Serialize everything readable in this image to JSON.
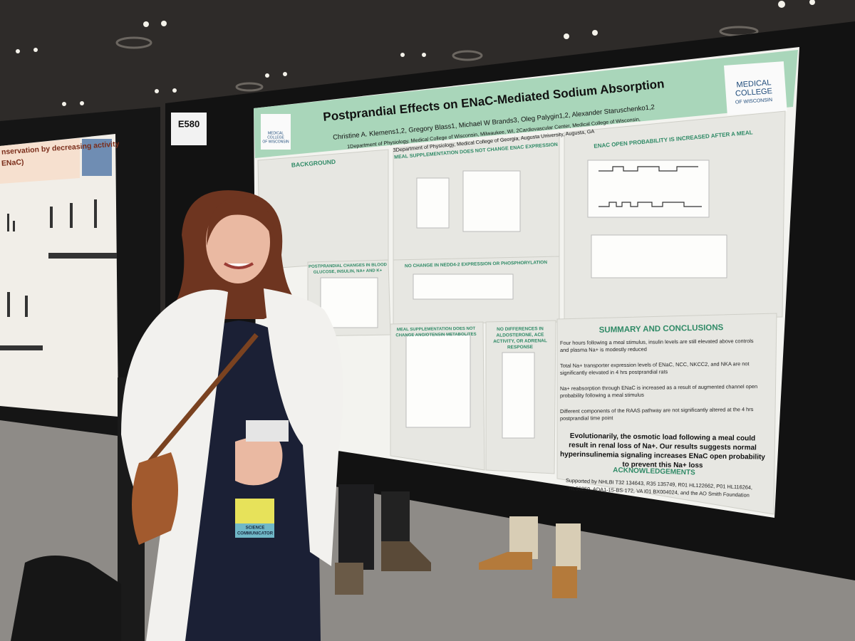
{
  "booth": "E580",
  "poster": {
    "title": "Postprandial Effects on ENaC-Mediated Sodium Absorption",
    "authors": "Christine A. Klemens1,2, Gregory Blass1, Michael W Brands3, Oleg Palygin1,2, Alexander Staruschenko1,2",
    "affiliations": [
      "1Department of Physiology, Medical College of Wisconsin, Milwaukee, WI, 2Cardiovascular Center, Medical College of Wisconsin,",
      "3Department of Physiology, Medical College of Georgia, Augusta University, Augusta, GA"
    ],
    "logo": [
      "MEDICAL",
      "COLLEGE",
      "OF WISCONSIN"
    ],
    "sections": [
      [
        "BACKGROUND"
      ],
      [
        "MEAL SUPPLEMENTATION DOES NOT CHANGE ENAC EXPRESSION"
      ],
      [
        "ENAC OPEN PROBABILITY IS INCREASED AFTER A MEAL"
      ],
      [
        "NO CHANGE IN NEDD4-2 EXPRESSION OR PHOSPHORYLATION"
      ],
      [
        "POSTPRANDIAL CHANGES IN BLOOD",
        "GLUCOSE, INSULIN, NA+ AND K+"
      ],
      [
        "MEAL SUPPLEMENTATION DOES NOT",
        "CHANGE ANGIOTENSIN METABOLITES"
      ],
      [
        "NO DIFFERENCES IN",
        "ALDOSTERONE, ACE",
        "ACTIVITY, OR ADRENAL",
        "RESPONSE"
      ]
    ],
    "summary": {
      "heading": "SUMMARY AND CONCLUSIONS",
      "points": [
        [
          "Four hours following a meal stimulus, insulin levels are still elevated above controls",
          "and plasma Na+ is modestly reduced"
        ],
        [
          "Total Na+ transporter expression levels of ENaC, NCC, NKCC2, and NKA are not",
          "significantly elevated in 4 hrs postprandial rats"
        ],
        [
          "Na+ reabsorption through ENaC is increased as a result of augmented channel open",
          "probability following a meal stimulus"
        ],
        [
          "Different components of the RAAS pathway are not significantly altered at the 4 hrs",
          "postprandial time point"
        ]
      ],
      "conclusion": [
        "Evolutionarily, the osmotic load following a meal could",
        "result in renal loss of Na+. Our results suggests normal",
        "hyperinsulinemia signaling increases ENaC open probability",
        "to prevent this Na+ loss"
      ]
    },
    "acknowledgements": {
      "heading": "ACKNOWLEDGEMENTS",
      "text": [
        "Supported by NHLBI T32 134643, R35 135749, R01 HL122662, P01 HL116264,",
        "HL56259, ADA1-15-BS-172, VA I01 BX004024, and the AO Smith Foundation"
      ]
    }
  },
  "left_poster": {
    "title": [
      "nservation by decreasing activity",
      "ENaC)"
    ]
  },
  "badge": [
    "SCIENCE",
    "COMMUNICATOR"
  ]
}
